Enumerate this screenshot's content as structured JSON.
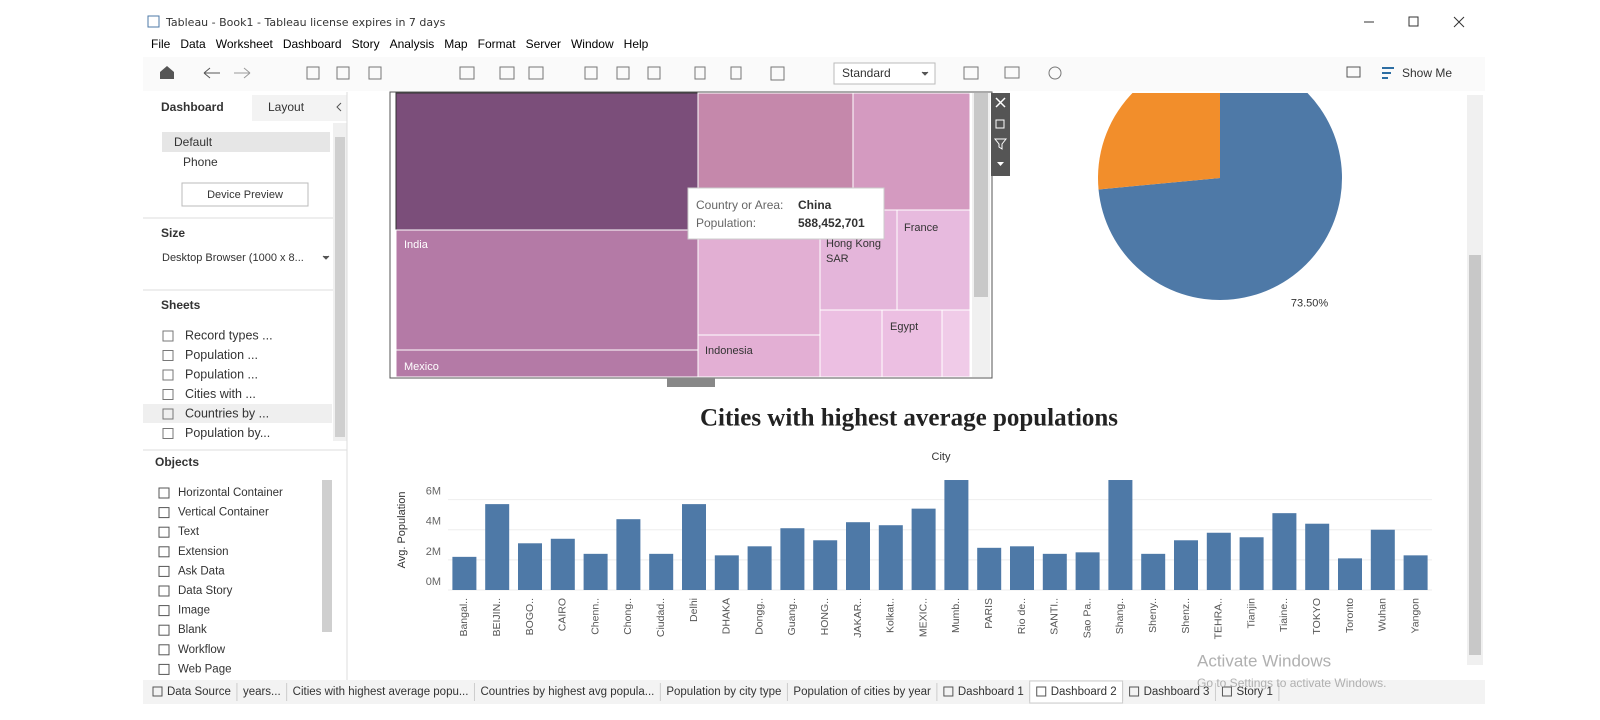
{
  "window": {
    "title": "Tableau - Book1 - Tableau license expires in 7 days"
  },
  "menu": [
    "File",
    "Data",
    "Worksheet",
    "Dashboard",
    "Story",
    "Analysis",
    "Map",
    "Format",
    "Server",
    "Window",
    "Help"
  ],
  "toolbar": {
    "mark_type": "Standard",
    "show_me": "Show Me"
  },
  "sidebar": {
    "tabs": [
      "Dashboard",
      "Layout"
    ],
    "devices": [
      "Default",
      "Phone"
    ],
    "device_preview": "Device Preview",
    "size_heading": "Size",
    "size_value": "Desktop Browser (1000 x 8...",
    "sheets_heading": "Sheets",
    "sheets": [
      "Record types ...",
      "Population ...",
      "Population ...",
      "Cities with ...",
      "Countries by ...",
      "Population by..."
    ],
    "objects_heading": "Objects",
    "objects": [
      "Horizontal Container",
      "Vertical Container",
      "Text",
      "Extension",
      "Ask Data",
      "Data Story",
      "Image",
      "Blank",
      "Workflow",
      "Web Page"
    ]
  },
  "treemap": {
    "cells": [
      [
        "India"
      ],
      [
        "Mexico"
      ],
      [
        "Indonesia"
      ],
      [
        "Hong Kong",
        "SAR"
      ],
      [
        "France"
      ],
      [
        "Egypt"
      ]
    ]
  },
  "tooltip": {
    "rows": [
      [
        "Country or Area:",
        "China"
      ],
      [
        "Population:",
        "588,452,701"
      ]
    ]
  },
  "chart_data": [
    {
      "type": "pie",
      "values": [
        73.5,
        26.5
      ],
      "value_labels": [
        "73.50%",
        null
      ],
      "colors": [
        "#4e79a7",
        "#f28e2b"
      ]
    },
    {
      "type": "bar",
      "title": "Cities with highest average populations",
      "x_label": "City",
      "y_label": "Avg. Population",
      "color": "#4e79a7",
      "grid": true,
      "categories": [
        "Bangal..",
        "BEIJIN..",
        "BOGO..",
        "CAIRO",
        "Chenn..",
        "Chong..",
        "Ciudad..",
        "Delhi",
        "DHAKA",
        "Dongg..",
        "Guang..",
        "HONG..",
        "JAKAR..",
        "Kolkat..",
        "MEXIC..",
        "Mumb..",
        "PARIS",
        "Rio de..",
        "SANTI..",
        "Sao Pa..",
        "Shang..",
        "Sheny..",
        "Shenz..",
        "TEHRA..",
        "Tianjin",
        "Tiaine..",
        "TOKYO",
        "Toronto",
        "Wuhan",
        "Yangon"
      ],
      "values": [
        2200000,
        5700000,
        3100000,
        3400000,
        2400000,
        4700000,
        2400000,
        5700000,
        2300000,
        2900000,
        4100000,
        3300000,
        4500000,
        4300000,
        5400000,
        7300000,
        2800000,
        2900000,
        2400000,
        2500000,
        7300000,
        2400000,
        3300000,
        3800000,
        3500000,
        5100000,
        4400000,
        2100000,
        4000000,
        2300000
      ],
      "ylim": [
        0,
        7500000
      ],
      "yticks": [
        {
          "value": 0,
          "label": "0M"
        },
        {
          "value": 2000000,
          "label": "2M"
        },
        {
          "value": 4000000,
          "label": "4M"
        },
        {
          "value": 6000000,
          "label": "6M"
        }
      ]
    }
  ],
  "tabs": [
    "Data Source",
    "years...",
    "Cities with highest average popu...",
    "Countries by highest avg popula...",
    "Population by city type",
    "Population of cities by year",
    "Dashboard 1",
    "Dashboard 2",
    "Dashboard 3",
    "Story 1"
  ],
  "watermark": [
    "Activate Windows",
    "Go to Settings to activate Windows."
  ]
}
